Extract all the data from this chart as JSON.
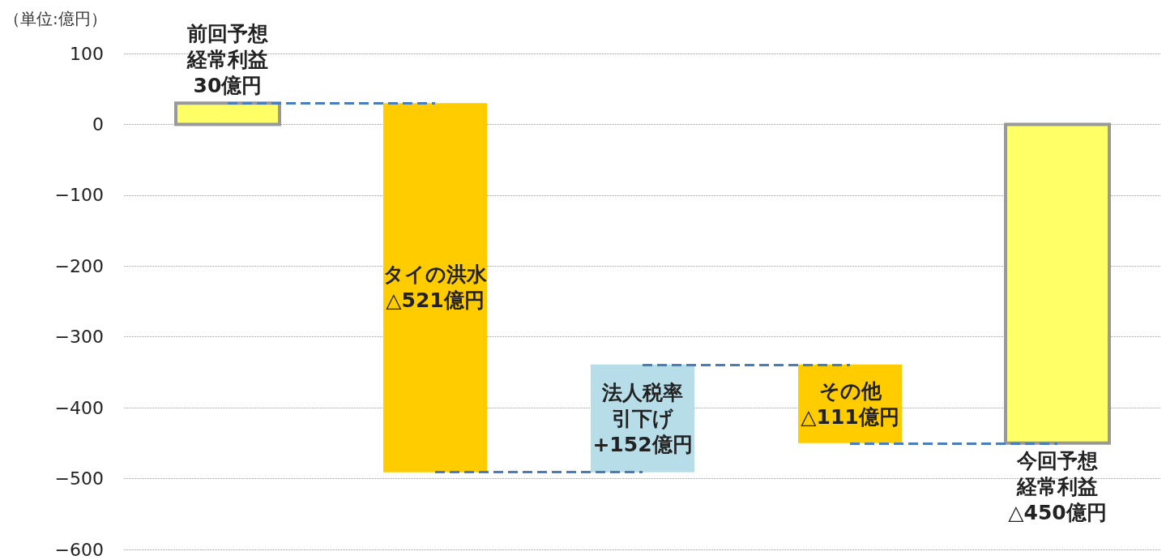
{
  "chart_data": {
    "type": "bar",
    "ylabel": "（単位:億円）",
    "categories": [
      null,
      null,
      null,
      null,
      null
    ],
    "values": [
      30,
      -521,
      152,
      -111,
      -450
    ],
    "base": [
      0,
      30,
      -491,
      -339,
      0
    ],
    "colors": [
      "#ffff66",
      "#ffcc00",
      "#b7dde8",
      "#ffcc00",
      "#ffff66"
    ],
    "value_labels": [
      "前回予想経常利益30億円",
      "タイの洪水△521億円",
      "法人税率引下げ+152億円",
      "その他△111億円",
      "今回予想経常利益△450億円"
    ],
    "ylim": [
      -600,
      100
    ],
    "yticks": [
      -600,
      -500,
      -400,
      -300,
      -200,
      -100,
      0,
      100
    ],
    "grid": "y"
  }
}
